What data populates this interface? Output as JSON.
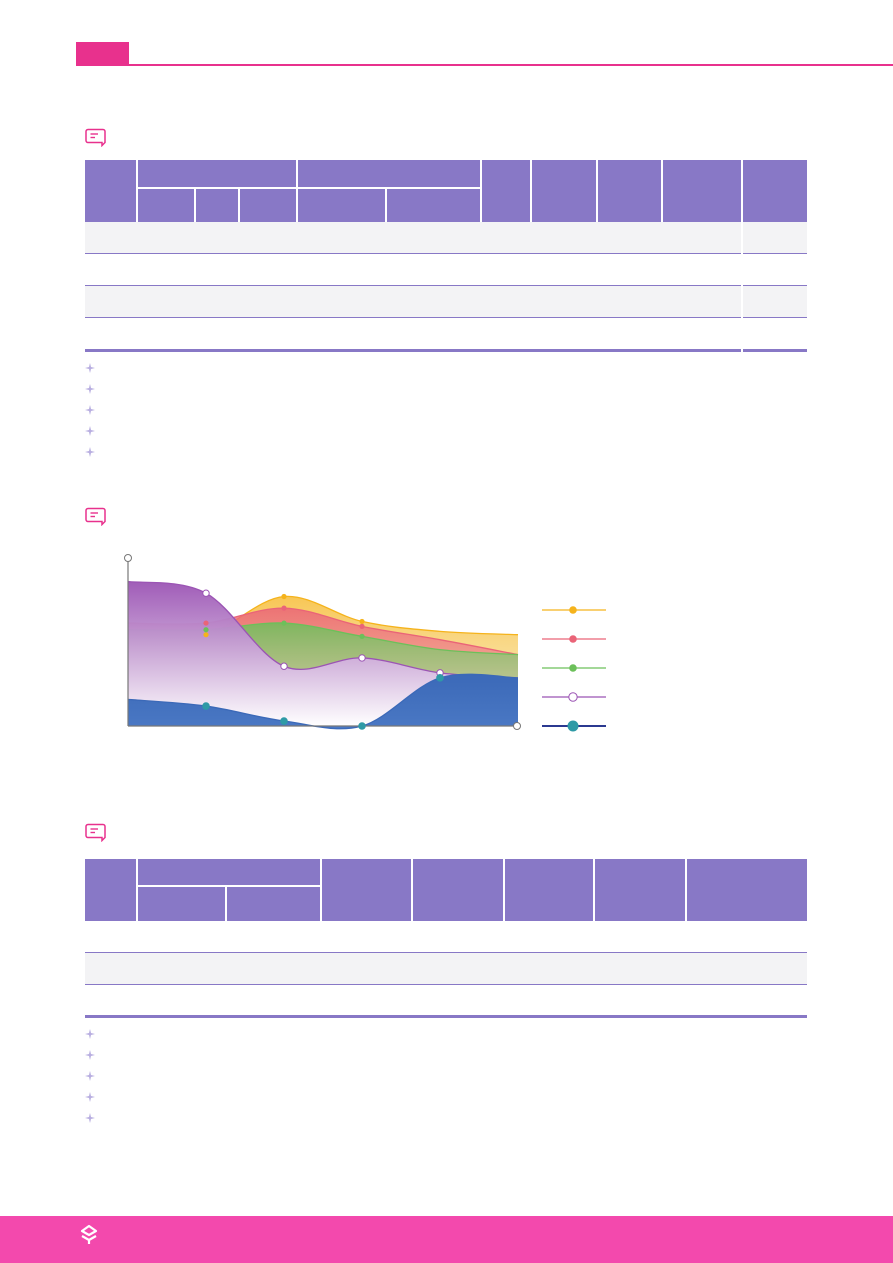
{
  "colors": {
    "accent": "#e8318d",
    "footer": "#f349ad",
    "table_header": "#8878c6",
    "row_alt": "#f3f3f5"
  },
  "icons": {
    "section": "chat-bubble-icon",
    "note": "sparkle-icon",
    "footer": "brand-logo-icon"
  },
  "chart_data": {
    "type": "area",
    "x": [
      0,
      1,
      2,
      3,
      4,
      5
    ],
    "series": [
      {
        "color": "#f5b31c",
        "values": [
          0.55,
          0.55,
          0.78,
          0.63,
          0.57,
          0.55
        ]
      },
      {
        "color": "#ea6478",
        "values": [
          0.62,
          0.62,
          0.71,
          0.6,
          0.52,
          0.43
        ]
      },
      {
        "color": "#6cc05a",
        "values": [
          0.58,
          0.58,
          0.62,
          0.54,
          0.46,
          0.43
        ]
      },
      {
        "color": "#9b54b4",
        "values": [
          0.87,
          0.8,
          0.36,
          0.41,
          0.32,
          0.29
        ]
      },
      {
        "color": "#3b69b8",
        "values": [
          0.16,
          0.12,
          0.03,
          0.0,
          0.29,
          0.29
        ]
      }
    ],
    "legend_position": "right",
    "grid": false
  }
}
